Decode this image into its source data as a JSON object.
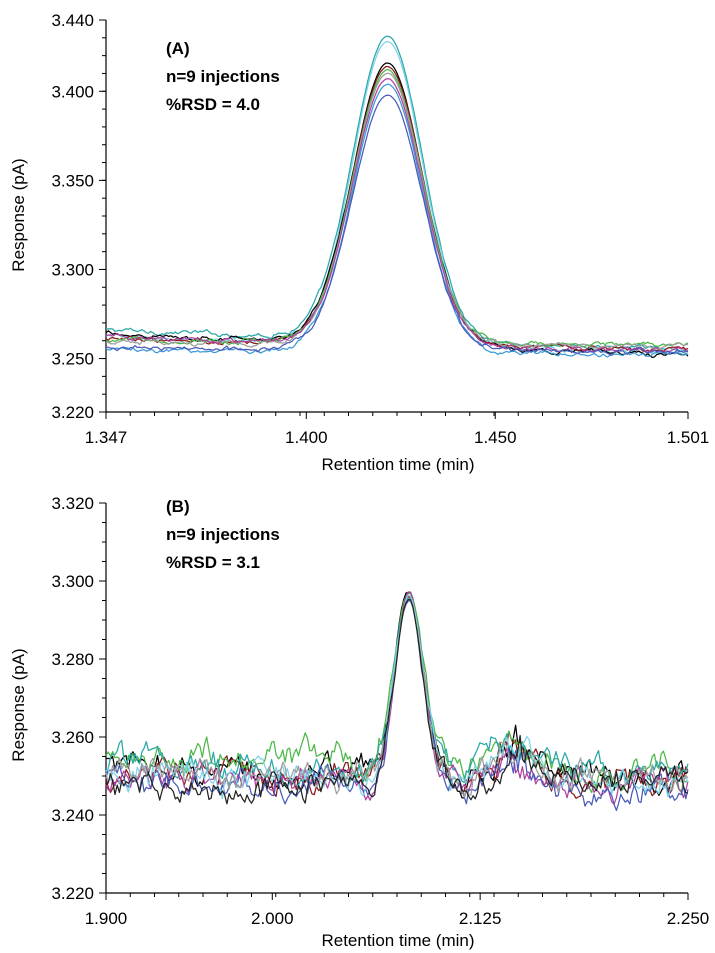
{
  "chart_data": [
    {
      "type": "line",
      "panel": "A",
      "annotations": [
        "(A)",
        "n=9 injections",
        "%RSD = 4.0"
      ],
      "xlabel": "Retention time (min)",
      "ylabel": "Response (pA)",
      "xlim": [
        1.347,
        1.501
      ],
      "ylim": [
        3.22,
        3.44
      ],
      "x_ticks": [
        "1.347",
        "1.400",
        "1.450",
        "1.501"
      ],
      "y_ticks": [
        "3.220",
        "3.250",
        "3.300",
        "3.350",
        "3.400",
        "3.440"
      ],
      "grid": false,
      "peak": {
        "center": 1.4215,
        "sigma": 0.0092
      },
      "series": [
        {
          "color": "#2aa7a7",
          "baseline_left": 3.266,
          "baseline_right": 3.255,
          "apex": 3.431
        },
        {
          "color": "#7fd3e8",
          "baseline_left": 3.262,
          "baseline_right": 3.253,
          "apex": 3.428
        },
        {
          "color": "#000000",
          "baseline_left": 3.264,
          "baseline_right": 3.252,
          "apex": 3.416
        },
        {
          "color": "#8b1a1a",
          "baseline_left": 3.261,
          "baseline_right": 3.255,
          "apex": 3.414
        },
        {
          "color": "#4cb848",
          "baseline_left": 3.26,
          "baseline_right": 3.258,
          "apex": 3.412
        },
        {
          "color": "#9e9e9e",
          "baseline_left": 3.259,
          "baseline_right": 3.257,
          "apex": 3.41
        },
        {
          "color": "#b040a0",
          "baseline_left": 3.262,
          "baseline_right": 3.254,
          "apex": 3.407
        },
        {
          "color": "#3a9ad9",
          "baseline_left": 3.255,
          "baseline_right": 3.252,
          "apex": 3.404
        },
        {
          "color": "#4a5ab8",
          "baseline_left": 3.256,
          "baseline_right": 3.254,
          "apex": 3.398
        }
      ]
    },
    {
      "type": "line",
      "panel": "B",
      "annotations": [
        "(B)",
        "n=9 injections",
        "%RSD = 3.1"
      ],
      "xlabel": "Retention time (min)",
      "ylabel": "Response (pA)",
      "xlim": [
        1.9,
        2.25
      ],
      "ylim": [
        3.22,
        3.32
      ],
      "x_ticks": [
        "1.900",
        "2.000",
        "2.125",
        "2.250"
      ],
      "y_ticks": [
        "3.220",
        "3.240",
        "3.260",
        "3.280",
        "3.300",
        "3.320"
      ],
      "grid": false,
      "peak": {
        "center": 2.082,
        "sigma": 0.0085
      },
      "bump": {
        "center": 2.145,
        "sigma": 0.01,
        "height": 0.008
      },
      "series": [
        {
          "color": "#000000",
          "baseline_left": 3.252,
          "baseline_right": 3.25,
          "apex": 3.297
        },
        {
          "color": "#8b1a1a",
          "baseline_left": 3.25,
          "baseline_right": 3.249,
          "apex": 3.296
        },
        {
          "color": "#4cb848",
          "baseline_left": 3.256,
          "baseline_right": 3.251,
          "apex": 3.297
        },
        {
          "color": "#2aa7a7",
          "baseline_left": 3.253,
          "baseline_right": 3.251,
          "apex": 3.296
        },
        {
          "color": "#b040a0",
          "baseline_left": 3.249,
          "baseline_right": 3.247,
          "apex": 3.297
        },
        {
          "color": "#4a5ab8",
          "baseline_left": 3.249,
          "baseline_right": 3.246,
          "apex": 3.295
        },
        {
          "color": "#7fd3e8",
          "baseline_left": 3.251,
          "baseline_right": 3.248,
          "apex": 3.296
        },
        {
          "color": "#9e9e9e",
          "baseline_left": 3.251,
          "baseline_right": 3.25,
          "apex": 3.295
        },
        {
          "color": "#222222",
          "baseline_left": 3.248,
          "baseline_right": 3.249,
          "apex": 3.296
        }
      ]
    }
  ]
}
